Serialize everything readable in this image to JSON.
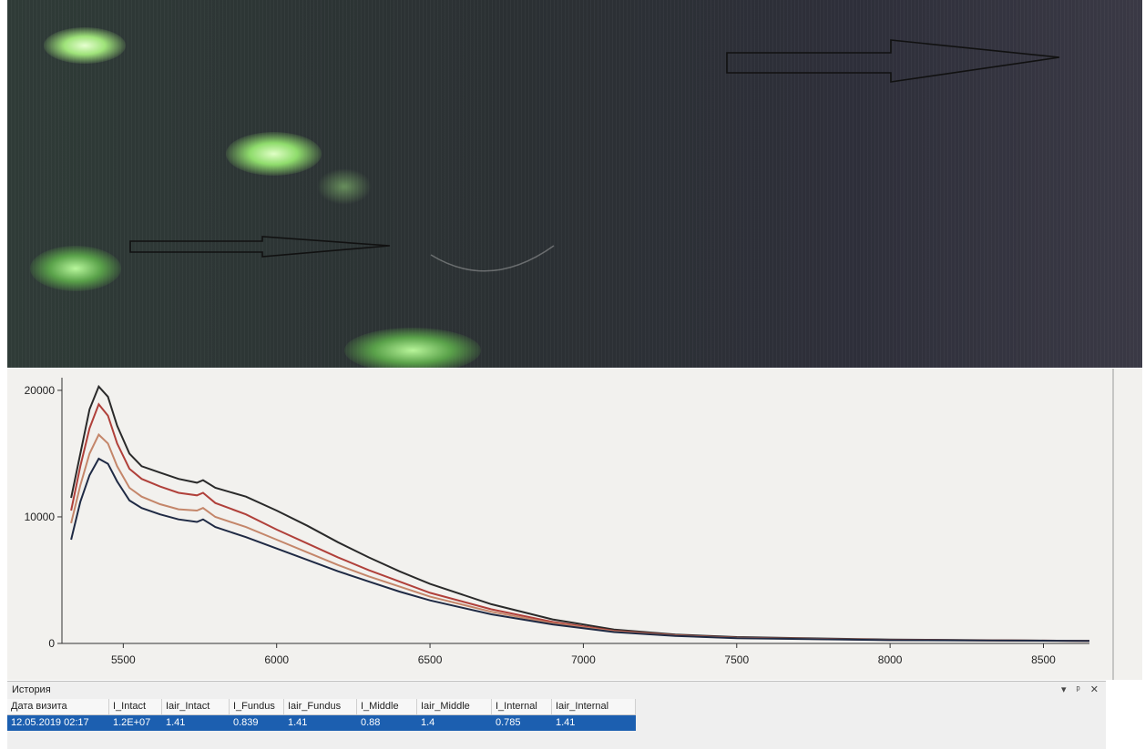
{
  "chart_data": {
    "type": "line",
    "title": "",
    "xlabel": "",
    "ylabel": "",
    "xlim": [
      5300,
      8650
    ],
    "ylim": [
      0,
      21000
    ],
    "x_ticks": [
      5500,
      6000,
      6500,
      7000,
      7500,
      8000,
      8500
    ],
    "y_ticks": [
      0,
      10000,
      20000
    ],
    "grid": false,
    "series": [
      {
        "color": "#2a2a2a",
        "x": [
          5330,
          5360,
          5390,
          5420,
          5450,
          5480,
          5520,
          5560,
          5620,
          5680,
          5740,
          5760,
          5800,
          5900,
          6000,
          6100,
          6200,
          6300,
          6400,
          6500,
          6700,
          6900,
          7100,
          7300,
          7500,
          8000,
          8650
        ],
        "y": [
          11500,
          15000,
          18500,
          20300,
          19500,
          17200,
          15000,
          14000,
          13500,
          13000,
          12700,
          12900,
          12300,
          11600,
          10500,
          9300,
          8000,
          6800,
          5700,
          4700,
          3100,
          1900,
          1100,
          700,
          500,
          300,
          200
        ]
      },
      {
        "color": "#b0403a",
        "x": [
          5330,
          5360,
          5390,
          5420,
          5450,
          5480,
          5520,
          5560,
          5620,
          5680,
          5740,
          5760,
          5800,
          5900,
          6000,
          6100,
          6200,
          6300,
          6400,
          6500,
          6700,
          6900,
          7100,
          7300,
          7500,
          8000,
          8650
        ],
        "y": [
          10500,
          14000,
          17000,
          18900,
          18000,
          15800,
          13800,
          13000,
          12400,
          11900,
          11700,
          11900,
          11100,
          10200,
          9000,
          7900,
          6800,
          5800,
          4900,
          4000,
          2700,
          1700,
          1000,
          650,
          450,
          280,
          200
        ]
      },
      {
        "color": "#c4866a",
        "x": [
          5330,
          5360,
          5390,
          5420,
          5450,
          5480,
          5520,
          5560,
          5620,
          5680,
          5740,
          5760,
          5800,
          5900,
          6000,
          6100,
          6200,
          6300,
          6400,
          6500,
          6700,
          6900,
          7100,
          7300,
          7500,
          8000,
          8650
        ],
        "y": [
          9500,
          12500,
          15000,
          16500,
          15800,
          14000,
          12300,
          11600,
          11000,
          10600,
          10500,
          10700,
          10000,
          9200,
          8200,
          7200,
          6200,
          5300,
          4500,
          3700,
          2500,
          1600,
          950,
          620,
          430,
          270,
          200
        ]
      },
      {
        "color": "#1f2a44",
        "x": [
          5330,
          5360,
          5390,
          5420,
          5450,
          5480,
          5520,
          5560,
          5620,
          5680,
          5740,
          5760,
          5800,
          5900,
          6000,
          6100,
          6200,
          6300,
          6400,
          6500,
          6700,
          6900,
          7100,
          7300,
          7500,
          8000,
          8650
        ],
        "y": [
          8200,
          11200,
          13300,
          14600,
          14200,
          12800,
          11300,
          10700,
          10200,
          9800,
          9600,
          9800,
          9200,
          8400,
          7500,
          6600,
          5700,
          4900,
          4100,
          3400,
          2300,
          1500,
          900,
          600,
          420,
          260,
          200
        ]
      }
    ]
  },
  "history": {
    "title": "История",
    "pin_icon": "pin-icon",
    "close_icon": "close-icon",
    "dropdown_icon": "chevron-down-icon",
    "columns": [
      "Дата визита",
      "I_Intact",
      "Iair_Intact",
      "I_Fundus",
      "Iair_Fundus",
      "I_Middle",
      "Iair_Middle",
      "I_Internal",
      "Iair_Internal"
    ],
    "rows": [
      [
        "12.05.2019 02:17",
        "1.2E+07",
        "1.41",
        "0.839",
        "1.41",
        "0.88",
        "1.4",
        "0.785",
        "1.41"
      ]
    ],
    "selected_row_color": "#1c5fb0"
  }
}
